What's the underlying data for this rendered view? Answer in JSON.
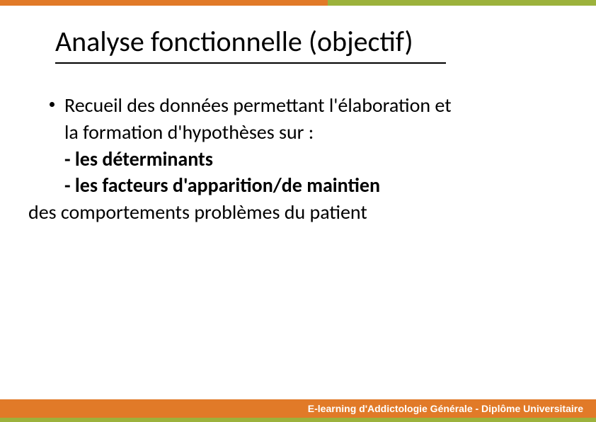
{
  "colors": {
    "orange": "#e17a28",
    "green": "#9cb23c",
    "text": "#000000",
    "white": "#ffffff"
  },
  "title": "Analyse fonctionnelle (objectif)",
  "body": {
    "lead1": "Recueil des données permettant l'élaboration et",
    "lead2": "la formation d'hypothèses sur :",
    "item1": "- les déterminants",
    "item2": "- les facteurs d'apparition/de maintien",
    "tail": "des comportements problèmes du patient"
  },
  "footer": "E-learning d'Addictologie Générale - Diplôme Universitaire"
}
